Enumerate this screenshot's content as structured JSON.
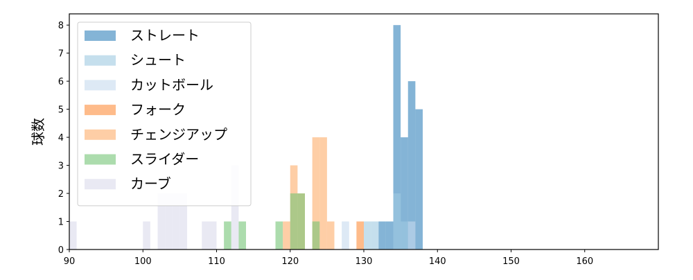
{
  "chart_data": {
    "type": "histogram",
    "title": "",
    "xlabel": "",
    "ylabel": "球数",
    "xlim": [
      90,
      170
    ],
    "ylim": [
      0,
      8.4
    ],
    "xticks": [
      90,
      100,
      110,
      120,
      130,
      140,
      150,
      160
    ],
    "yticks": [
      0,
      1,
      2,
      3,
      4,
      5,
      6,
      7,
      8
    ],
    "grid": false,
    "legend_position": "top-left",
    "bin_width": 1,
    "series": [
      {
        "name": "ストレート",
        "color": "#1f77b4",
        "opacity": 0.55,
        "bins": [
          [
            132,
            1
          ],
          [
            133,
            1
          ],
          [
            134,
            8
          ],
          [
            135,
            4
          ],
          [
            136,
            6
          ],
          [
            137,
            5
          ]
        ]
      },
      {
        "name": "シュート",
        "color": "#9ecae1",
        "opacity": 0.6,
        "bins": [
          [
            130,
            1
          ],
          [
            131,
            1
          ],
          [
            134,
            2
          ],
          [
            135,
            1
          ]
        ]
      },
      {
        "name": "カットボール",
        "color": "#c6dbef",
        "opacity": 0.6,
        "bins": [
          [
            127,
            1
          ],
          [
            136,
            1
          ]
        ]
      },
      {
        "name": "フォーク",
        "color": "#fd8d3c",
        "opacity": 0.6,
        "bins": [
          [
            129,
            1
          ]
        ]
      },
      {
        "name": "チェンジアップ",
        "color": "#fdae6b",
        "opacity": 0.6,
        "bins": [
          [
            119,
            1
          ],
          [
            120,
            3
          ],
          [
            121,
            2
          ],
          [
            123,
            4
          ],
          [
            124,
            4
          ],
          [
            125,
            1
          ]
        ]
      },
      {
        "name": "スライダー",
        "color": "#74c476",
        "opacity": 0.6,
        "bins": [
          [
            111,
            1
          ],
          [
            113,
            1
          ],
          [
            118,
            1
          ],
          [
            120,
            2
          ],
          [
            121,
            2
          ],
          [
            123,
            1
          ]
        ]
      },
      {
        "name": "カーブ",
        "color": "#dadaeb",
        "opacity": 0.6,
        "bins": [
          [
            90,
            1
          ],
          [
            100,
            1
          ],
          [
            102,
            2
          ],
          [
            103,
            2
          ],
          [
            104,
            2
          ],
          [
            105,
            2
          ],
          [
            108,
            1
          ],
          [
            109,
            1
          ],
          [
            112,
            3
          ]
        ]
      }
    ]
  }
}
